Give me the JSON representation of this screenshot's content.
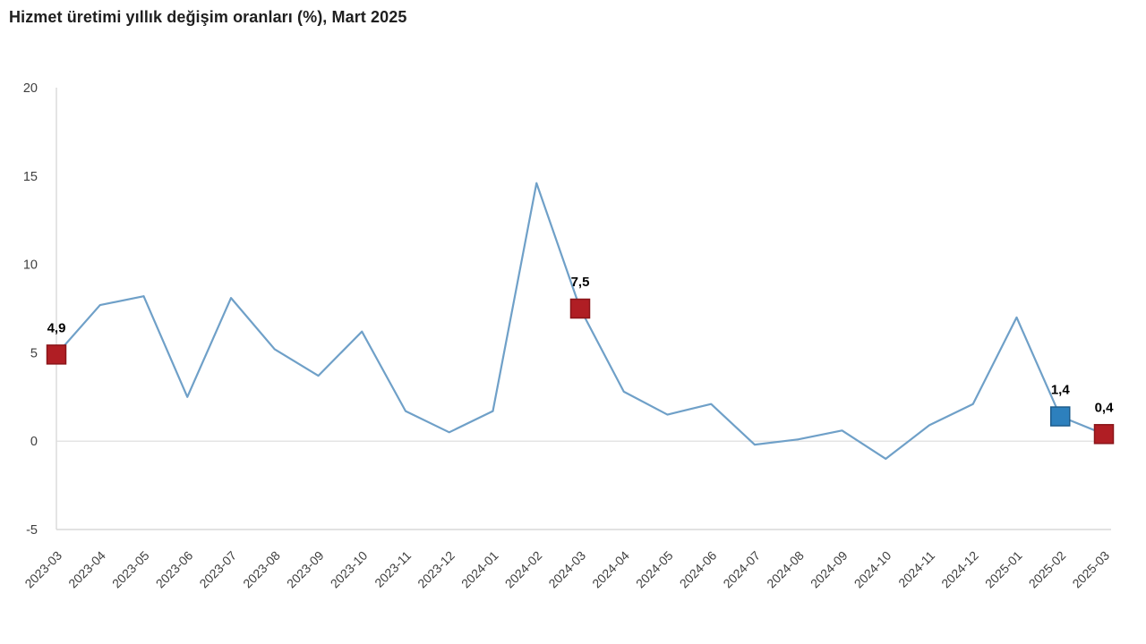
{
  "title": "Hizmet üretimi yıllık değişim oranları (%), Mart 2025",
  "colors": {
    "line": "#6fa0c8",
    "marker_red": "#b01e24",
    "marker_red_border": "#8a1519",
    "marker_blue": "#2d80bd",
    "marker_blue_border": "#1d5c8c",
    "axis": "#d9d9d9",
    "zero_gridline": "#dcdcdc",
    "tick_text": "#3f3f3f",
    "data_label_text": "#000000",
    "title_text": "#1f1f1f"
  },
  "chart_data": {
    "type": "line",
    "title": "Hizmet üretimi yıllık değişim oranları (%), Mart 2025",
    "x": [
      "2023-03",
      "2023-04",
      "2023-05",
      "2023-06",
      "2023-07",
      "2023-08",
      "2023-09",
      "2023-10",
      "2023-11",
      "2023-12",
      "2024-01",
      "2024-02",
      "2024-03",
      "2024-04",
      "2024-05",
      "2024-06",
      "2024-07",
      "2024-08",
      "2024-09",
      "2024-10",
      "2024-11",
      "2024-12",
      "2025-01",
      "2025-02",
      "2025-03"
    ],
    "values": [
      4.9,
      7.7,
      8.2,
      2.5,
      8.1,
      5.2,
      3.7,
      6.2,
      1.7,
      0.5,
      1.7,
      14.6,
      7.5,
      2.8,
      1.5,
      2.1,
      -0.2,
      0.1,
      0.6,
      -1.0,
      0.9,
      2.1,
      7.0,
      1.4,
      0.4
    ],
    "ylim": [
      -5,
      20
    ],
    "yticks": [
      20,
      15,
      10,
      5,
      0,
      -5
    ],
    "xlabel": "",
    "ylabel": "",
    "grid": "zero-line-only",
    "legend": "none",
    "value_decimal_separator": ",",
    "highlighted_points": [
      {
        "x": "2023-03",
        "value": 4.9,
        "label": "4,9",
        "color_key": "marker_red"
      },
      {
        "x": "2024-03",
        "value": 7.5,
        "label": "7,5",
        "color_key": "marker_red"
      },
      {
        "x": "2025-02",
        "value": 1.4,
        "label": "1,4",
        "color_key": "marker_blue"
      },
      {
        "x": "2025-03",
        "value": 0.4,
        "label": "0,4",
        "color_key": "marker_red"
      }
    ]
  }
}
